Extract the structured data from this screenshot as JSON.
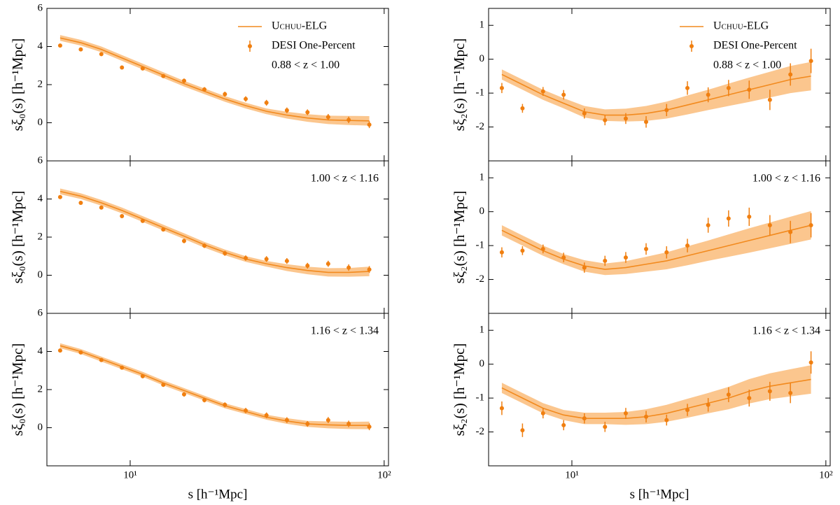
{
  "chart_data": [
    {
      "type": "line",
      "ylabel": "sξ₀(s) [h⁻¹Mpc]",
      "annotation": "0.88 < z < 1.00",
      "legend": "upper right",
      "xscale": "log",
      "xlim": [
        4.7,
        104
      ],
      "ylim": [
        -2,
        6
      ],
      "xticks": [
        {
          "value": 10,
          "label": "10¹"
        },
        {
          "value": 100,
          "label": "10²"
        }
      ],
      "yticks": [
        0,
        2,
        4,
        6
      ],
      "x": [
        5.3,
        6.39,
        7.7,
        9.28,
        11.2,
        13.5,
        16.3,
        19.6,
        23.6,
        28.5,
        34.4,
        41.4,
        49.9,
        60.2,
        72.5,
        87.4
      ],
      "series": [
        {
          "name": "Uchuu-ELG",
          "color": "#f28a1e",
          "band_color": "#fbc68e",
          "values": [
            4.45,
            4.2,
            3.85,
            3.4,
            2.95,
            2.5,
            2.05,
            1.65,
            1.25,
            0.9,
            0.6,
            0.4,
            0.25,
            0.15,
            0.12,
            0.1
          ],
          "band_lower": [
            4.3,
            4.05,
            3.7,
            3.25,
            2.8,
            2.35,
            1.9,
            1.5,
            1.1,
            0.75,
            0.45,
            0.22,
            0.05,
            -0.07,
            -0.12,
            -0.15
          ],
          "band_upper": [
            4.6,
            4.35,
            4.0,
            3.55,
            3.1,
            2.65,
            2.2,
            1.8,
            1.4,
            1.05,
            0.75,
            0.58,
            0.45,
            0.37,
            0.36,
            0.35
          ]
        },
        {
          "name": "DESI One-Percent",
          "color": "#f07f10",
          "values": [
            4.05,
            3.85,
            3.6,
            2.9,
            2.85,
            2.45,
            2.2,
            1.75,
            1.5,
            1.25,
            1.05,
            0.65,
            0.55,
            0.3,
            0.15,
            -0.1
          ],
          "errors": [
            0.1,
            0.1,
            0.1,
            0.1,
            0.1,
            0.1,
            0.12,
            0.12,
            0.13,
            0.14,
            0.15,
            0.15,
            0.15,
            0.16,
            0.17,
            0.18
          ]
        }
      ]
    },
    {
      "type": "line",
      "ylabel": "sξ₀(s) [h⁻¹Mpc]",
      "annotation": "1.00 < z < 1.16",
      "xscale": "log",
      "xlim": [
        4.7,
        104
      ],
      "ylim": [
        -2,
        6
      ],
      "xticks": [
        {
          "value": 10,
          "label": "10¹"
        },
        {
          "value": 100,
          "label": "10²"
        }
      ],
      "yticks": [
        0,
        2,
        4,
        6
      ],
      "x": [
        5.3,
        6.39,
        7.7,
        9.28,
        11.2,
        13.5,
        16.3,
        19.6,
        23.6,
        28.5,
        34.4,
        41.4,
        49.9,
        60.2,
        72.5,
        87.4
      ],
      "series": [
        {
          "color": "#f28a1e",
          "band_color": "#fbc68e",
          "values": [
            4.4,
            4.15,
            3.8,
            3.4,
            2.95,
            2.5,
            2.05,
            1.6,
            1.2,
            0.85,
            0.6,
            0.4,
            0.25,
            0.15,
            0.15,
            0.2
          ],
          "band_lower": [
            4.25,
            4.0,
            3.65,
            3.25,
            2.8,
            2.35,
            1.9,
            1.45,
            1.05,
            0.7,
            0.45,
            0.22,
            0.05,
            -0.07,
            -0.08,
            -0.05
          ],
          "band_upper": [
            4.55,
            4.3,
            3.95,
            3.55,
            3.1,
            2.65,
            2.2,
            1.75,
            1.35,
            1.0,
            0.75,
            0.58,
            0.45,
            0.37,
            0.38,
            0.45
          ]
        },
        {
          "color": "#f07f10",
          "values": [
            4.1,
            3.8,
            3.55,
            3.1,
            2.85,
            2.4,
            1.8,
            1.55,
            1.15,
            0.9,
            0.85,
            0.75,
            0.5,
            0.6,
            0.4,
            0.3
          ],
          "errors": [
            0.1,
            0.1,
            0.1,
            0.1,
            0.1,
            0.1,
            0.12,
            0.12,
            0.13,
            0.14,
            0.15,
            0.15,
            0.15,
            0.16,
            0.17,
            0.18
          ]
        }
      ]
    },
    {
      "type": "line",
      "ylabel": "sξ₀(s) [h⁻¹Mpc]",
      "xlabel": "s [h⁻¹Mpc]",
      "annotation": "1.16 < z < 1.34",
      "xscale": "log",
      "xlim": [
        4.7,
        104
      ],
      "ylim": [
        -2,
        6
      ],
      "xticks": [
        {
          "value": 10,
          "label": "10¹"
        },
        {
          "value": 100,
          "label": "10²"
        }
      ],
      "yticks": [
        0,
        2,
        4,
        6
      ],
      "x": [
        5.3,
        6.39,
        7.7,
        9.28,
        11.2,
        13.5,
        16.3,
        19.6,
        23.6,
        28.5,
        34.4,
        41.4,
        49.9,
        60.2,
        72.5,
        87.4
      ],
      "series": [
        {
          "color": "#f28a1e",
          "band_color": "#fbc68e",
          "values": [
            4.3,
            4.0,
            3.6,
            3.2,
            2.8,
            2.35,
            1.95,
            1.55,
            1.15,
            0.85,
            0.55,
            0.35,
            0.2,
            0.15,
            0.12,
            0.12
          ],
          "band_lower": [
            4.17,
            3.87,
            3.47,
            3.07,
            2.67,
            2.22,
            1.82,
            1.42,
            1.02,
            0.72,
            0.42,
            0.2,
            0.04,
            -0.03,
            -0.07,
            -0.08
          ],
          "band_upper": [
            4.43,
            4.13,
            3.73,
            3.33,
            2.93,
            2.48,
            2.08,
            1.68,
            1.28,
            0.98,
            0.68,
            0.5,
            0.36,
            0.33,
            0.31,
            0.32
          ]
        },
        {
          "color": "#f07f10",
          "values": [
            4.05,
            3.95,
            3.55,
            3.15,
            2.7,
            2.25,
            1.75,
            1.45,
            1.2,
            0.9,
            0.65,
            0.4,
            0.2,
            0.4,
            0.2,
            0.05
          ],
          "errors": [
            0.1,
            0.1,
            0.1,
            0.1,
            0.1,
            0.1,
            0.12,
            0.12,
            0.13,
            0.14,
            0.15,
            0.15,
            0.15,
            0.16,
            0.17,
            0.18
          ]
        }
      ]
    },
    {
      "type": "line",
      "ylabel": "sξ₂(s) [h⁻¹Mpc]",
      "annotation": "0.88 < z < 1.00",
      "legend": "upper right",
      "xscale": "log",
      "xlim": [
        4.7,
        104
      ],
      "ylim": [
        -3,
        1.5
      ],
      "xticks": [
        {
          "value": 10,
          "label": "10¹"
        },
        {
          "value": 100,
          "label": "10²"
        }
      ],
      "yticks": [
        -2,
        -1,
        0,
        1
      ],
      "x": [
        5.3,
        6.39,
        7.7,
        9.28,
        11.2,
        13.5,
        16.3,
        19.6,
        23.6,
        28.5,
        34.4,
        41.4,
        49.9,
        60.2,
        72.5,
        87.4
      ],
      "series": [
        {
          "name": "Uchuu-ELG",
          "color": "#f28a1e",
          "band_color": "#fbc68e",
          "values": [
            -0.45,
            -0.75,
            -1.05,
            -1.3,
            -1.55,
            -1.65,
            -1.65,
            -1.6,
            -1.5,
            -1.35,
            -1.2,
            -1.05,
            -0.9,
            -0.75,
            -0.6,
            -0.5
          ],
          "band_lower": [
            -0.6,
            -0.9,
            -1.2,
            -1.45,
            -1.72,
            -1.82,
            -1.84,
            -1.82,
            -1.75,
            -1.63,
            -1.5,
            -1.38,
            -1.26,
            -1.13,
            -1.0,
            -0.92
          ],
          "band_upper": [
            -0.3,
            -0.6,
            -0.9,
            -1.15,
            -1.38,
            -1.48,
            -1.46,
            -1.38,
            -1.25,
            -1.07,
            -0.9,
            -0.72,
            -0.54,
            -0.37,
            -0.2,
            -0.08
          ]
        },
        {
          "name": "DESI One-Percent",
          "color": "#f07f10",
          "values": [
            -0.85,
            -1.45,
            -0.95,
            -1.05,
            -1.6,
            -1.8,
            -1.75,
            -1.85,
            -1.5,
            -0.85,
            -1.05,
            -0.85,
            -0.9,
            -1.2,
            -0.45,
            -0.05
          ],
          "errors": [
            0.15,
            0.13,
            0.13,
            0.14,
            0.15,
            0.15,
            0.16,
            0.17,
            0.18,
            0.2,
            0.22,
            0.24,
            0.27,
            0.3,
            0.33,
            0.36
          ]
        }
      ]
    },
    {
      "type": "line",
      "ylabel": "sξ₂(s) [h⁻¹Mpc]",
      "annotation": "1.00 < z < 1.16",
      "xscale": "log",
      "xlim": [
        4.7,
        104
      ],
      "ylim": [
        -3,
        1.5
      ],
      "xticks": [
        {
          "value": 10,
          "label": "10¹"
        },
        {
          "value": 100,
          "label": "10²"
        }
      ],
      "yticks": [
        -2,
        -1,
        0,
        1
      ],
      "x": [
        5.3,
        6.39,
        7.7,
        9.28,
        11.2,
        13.5,
        16.3,
        19.6,
        23.6,
        28.5,
        34.4,
        41.4,
        49.9,
        60.2,
        72.5,
        87.4
      ],
      "series": [
        {
          "color": "#f28a1e",
          "band_color": "#fbc68e",
          "values": [
            -0.55,
            -0.85,
            -1.15,
            -1.4,
            -1.6,
            -1.7,
            -1.65,
            -1.55,
            -1.45,
            -1.3,
            -1.15,
            -1.0,
            -0.85,
            -0.7,
            -0.55,
            -0.4
          ],
          "band_lower": [
            -0.7,
            -1.0,
            -1.3,
            -1.55,
            -1.77,
            -1.87,
            -1.84,
            -1.77,
            -1.7,
            -1.58,
            -1.45,
            -1.33,
            -1.21,
            -1.08,
            -0.95,
            -0.82
          ],
          "band_upper": [
            -0.4,
            -0.7,
            -1.0,
            -1.25,
            -1.43,
            -1.53,
            -1.46,
            -1.33,
            -1.2,
            -1.02,
            -0.85,
            -0.67,
            -0.49,
            -0.32,
            -0.15,
            0.02
          ]
        },
        {
          "color": "#f07f10",
          "values": [
            -1.2,
            -1.15,
            -1.1,
            -1.35,
            -1.65,
            -1.45,
            -1.35,
            -1.1,
            -1.2,
            -1.0,
            -0.4,
            -0.2,
            -0.15,
            -0.4,
            -0.6,
            -0.4
          ],
          "errors": [
            0.15,
            0.13,
            0.13,
            0.14,
            0.15,
            0.15,
            0.16,
            0.17,
            0.18,
            0.2,
            0.22,
            0.24,
            0.27,
            0.3,
            0.33,
            0.36
          ]
        }
      ]
    },
    {
      "type": "line",
      "ylabel": "sξ₂(s) [h⁻¹Mpc]",
      "xlabel": "s [h⁻¹Mpc]",
      "annotation": "1.16 < z < 1.34",
      "xscale": "log",
      "xlim": [
        4.7,
        104
      ],
      "ylim": [
        -3,
        1.5
      ],
      "xticks": [
        {
          "value": 10,
          "label": "10¹"
        },
        {
          "value": 100,
          "label": "10²"
        }
      ],
      "yticks": [
        -2,
        -1,
        0,
        1
      ],
      "x": [
        5.3,
        6.39,
        7.7,
        9.28,
        11.2,
        13.5,
        16.3,
        19.6,
        23.6,
        28.5,
        34.4,
        41.4,
        49.9,
        60.2,
        72.5,
        87.4
      ],
      "series": [
        {
          "color": "#f28a1e",
          "band_color": "#fbc68e",
          "values": [
            -0.7,
            -1.0,
            -1.3,
            -1.5,
            -1.6,
            -1.6,
            -1.6,
            -1.55,
            -1.45,
            -1.3,
            -1.15,
            -1.0,
            -0.8,
            -0.65,
            -0.55,
            -0.45
          ],
          "band_lower": [
            -0.85,
            -1.15,
            -1.45,
            -1.65,
            -1.77,
            -1.77,
            -1.79,
            -1.77,
            -1.7,
            -1.58,
            -1.45,
            -1.33,
            -1.16,
            -1.03,
            -0.95,
            -0.87
          ],
          "band_upper": [
            -0.55,
            -0.85,
            -1.15,
            -1.35,
            -1.43,
            -1.43,
            -1.41,
            -1.33,
            -1.2,
            -1.02,
            -0.85,
            -0.67,
            -0.44,
            -0.27,
            -0.15,
            -0.03
          ]
        },
        {
          "color": "#f07f10",
          "values": [
            -1.3,
            -1.95,
            -1.45,
            -1.8,
            -1.6,
            -1.85,
            -1.45,
            -1.55,
            -1.65,
            -1.35,
            -1.2,
            -0.9,
            -1.0,
            -0.8,
            -0.85,
            0.05
          ],
          "errors": [
            0.2,
            0.2,
            0.15,
            0.15,
            0.15,
            0.15,
            0.16,
            0.17,
            0.16,
            0.18,
            0.2,
            0.22,
            0.25,
            0.28,
            0.3,
            0.33
          ]
        }
      ]
    }
  ]
}
